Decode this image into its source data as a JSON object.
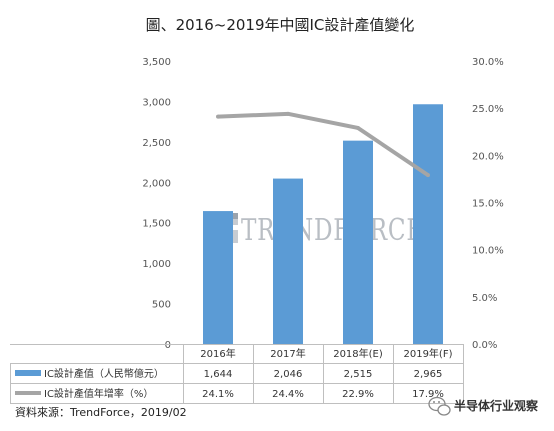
{
  "chart_data": {
    "type": "bar",
    "title": "圖、2016~2019年中國IC設計產值變化",
    "categories": [
      "2016年",
      "2017年",
      "2018年(E)",
      "2019年(F)"
    ],
    "series": [
      {
        "name": "IC設計產值（人民幣億元）",
        "type": "bar",
        "axis": "left",
        "color": "#5b9bd5",
        "values": [
          1644,
          2046,
          2515,
          2965
        ],
        "labels": [
          "1,644",
          "2,046",
          "2,515",
          "2,965"
        ]
      },
      {
        "name": "IC設計產值年增率（%）",
        "type": "line",
        "axis": "right",
        "color": "#a5a5a5",
        "values": [
          24.1,
          24.4,
          22.9,
          17.9
        ],
        "labels": [
          "24.1%",
          "24.4%",
          "22.9%",
          "17.9%"
        ]
      }
    ],
    "y_left": {
      "range": [
        0,
        3500
      ],
      "ticks": [
        "0",
        "500",
        "1,000",
        "1,500",
        "2,000",
        "2,500",
        "3,000",
        "3,500"
      ]
    },
    "y_right": {
      "range": [
        0,
        30
      ],
      "ticks": [
        "0.0%",
        "5.0%",
        "10.0%",
        "15.0%",
        "20.0%",
        "25.0%",
        "30.0%"
      ]
    },
    "grid": false,
    "legend": "data-table-below"
  },
  "watermark": {
    "text": "TRENDFORCE",
    "logo_icon": "trendforce-logo-icon"
  },
  "source": "資料來源：TrendForce，2019/02",
  "footer_brand": "半导体行业观察",
  "footer_icon": "wechat-logo-icon"
}
